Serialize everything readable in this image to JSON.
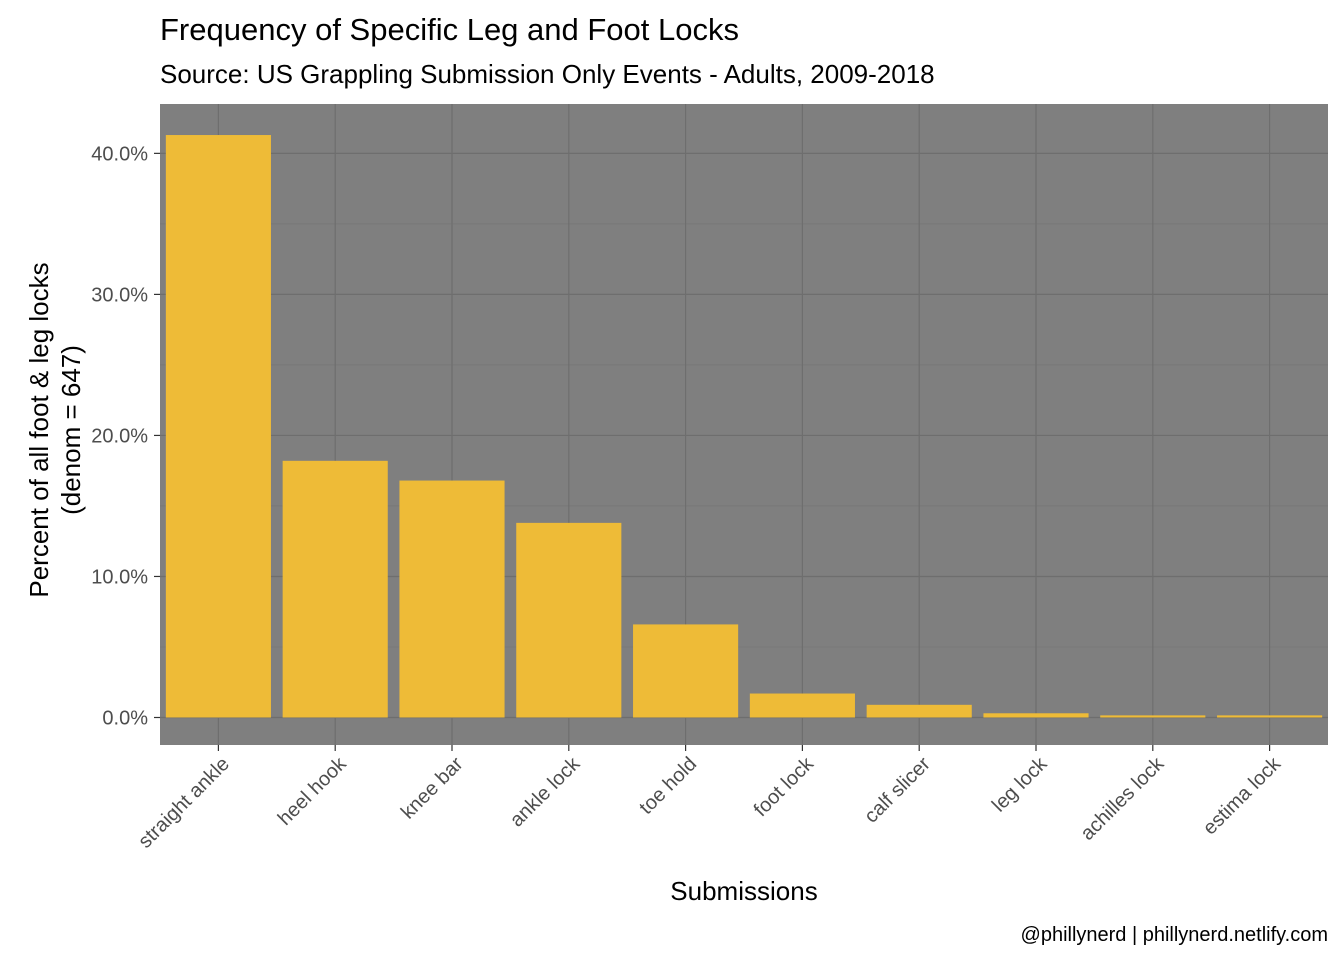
{
  "chart_data": {
    "type": "bar",
    "title": "Frequency of Specific Leg and Foot Locks",
    "subtitle": "Source: US Grappling Submission Only Events - Adults, 2009-2018",
    "xlabel": "Submissions",
    "ylabel_lines": [
      "Percent of all foot & leg locks",
      "(denom = 647)"
    ],
    "caption": "@phillynerd | phillynerd.netlify.com",
    "categories": [
      "straight ankle",
      "heel hook",
      "knee bar",
      "ankle lock",
      "toe hold",
      "foot lock",
      "calf slicer",
      "leg lock",
      "achilles lock",
      "estima lock"
    ],
    "values": [
      41.3,
      18.2,
      16.8,
      13.8,
      6.6,
      1.7,
      0.9,
      0.3,
      0.15,
      0.15
    ],
    "y_ticks": [
      0,
      10,
      20,
      30,
      40
    ],
    "y_tick_labels": [
      "0.0%",
      "10.0%",
      "20.0%",
      "30.0%",
      "40.0%"
    ],
    "ylim": [
      -1.95,
      43.5
    ],
    "grid": true,
    "legend": "none",
    "colors": {
      "bar": "#EEBB37",
      "panel_background": "#7F7F7F",
      "grid_major": "#6E6E6E",
      "grid_minor": "#767676"
    }
  }
}
